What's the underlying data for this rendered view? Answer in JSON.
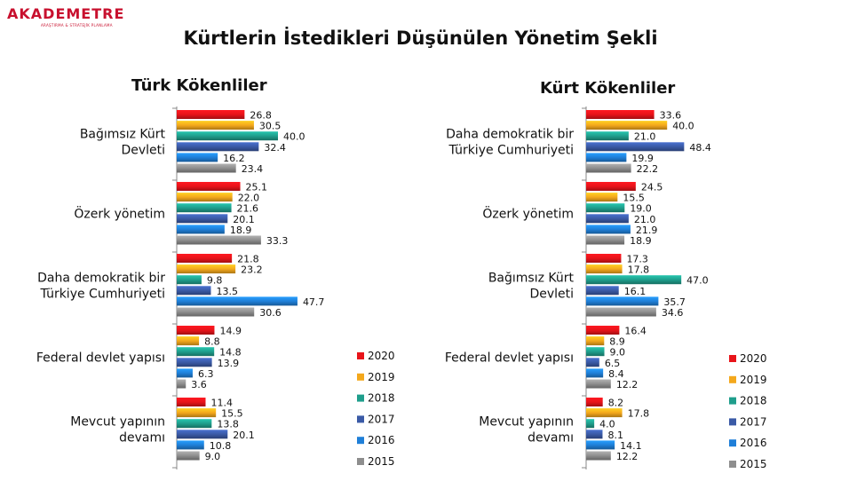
{
  "logo": {
    "name": "AKADEMETRE",
    "tagline": "ARAŞTIRMA & STRATEJİK PLANLAMA"
  },
  "title": "Kürtlerin İstedikleri Düşünülen Yönetim Şekli",
  "legend": [
    {
      "year": "2020",
      "color": "#e8141a"
    },
    {
      "year": "2019",
      "color": "#f4a81c"
    },
    {
      "year": "2018",
      "color": "#1f9e8c"
    },
    {
      "year": "2017",
      "color": "#3a5aa6"
    },
    {
      "year": "2016",
      "color": "#1f7fd8"
    },
    {
      "year": "2015",
      "color": "#8e8e8e"
    }
  ],
  "chart_data": [
    {
      "type": "bar",
      "orientation": "horizontal",
      "title": "Türk Kökenliler",
      "series_names": [
        "2020",
        "2019",
        "2018",
        "2017",
        "2016",
        "2015"
      ],
      "categories": [
        {
          "label": [
            "Bağımsız Kürt",
            "Devleti"
          ],
          "values": [
            26.8,
            30.5,
            40.0,
            32.4,
            16.2,
            23.4
          ]
        },
        {
          "label": [
            "Özerk yönetim"
          ],
          "values": [
            25.1,
            22.0,
            21.6,
            20.1,
            18.9,
            33.3
          ]
        },
        {
          "label": [
            "Daha demokratik bir",
            "Türkiye Cumhuriyeti"
          ],
          "values": [
            21.8,
            23.2,
            9.8,
            13.5,
            47.7,
            30.6
          ]
        },
        {
          "label": [
            "Federal devlet yapısı"
          ],
          "values": [
            14.9,
            8.8,
            14.8,
            13.9,
            6.3,
            3.6
          ]
        },
        {
          "label": [
            "Mevcut yapının",
            "devamı"
          ],
          "values": [
            11.4,
            15.5,
            13.8,
            20.1,
            10.8,
            9.0
          ]
        }
      ]
    },
    {
      "type": "bar",
      "orientation": "horizontal",
      "title": "Kürt Kökenliler",
      "series_names": [
        "2020",
        "2019",
        "2018",
        "2017",
        "2016",
        "2015"
      ],
      "categories": [
        {
          "label": [
            "Daha demokratik bir",
            "Türkiye Cumhuriyeti"
          ],
          "values": [
            33.6,
            40.0,
            21.0,
            48.4,
            19.9,
            22.2
          ]
        },
        {
          "label": [
            "Özerk yönetim"
          ],
          "values": [
            24.5,
            15.5,
            19.0,
            21.0,
            21.9,
            18.9
          ]
        },
        {
          "label": [
            "Bağımsız Kürt",
            "Devleti"
          ],
          "values": [
            17.3,
            17.8,
            47.0,
            16.1,
            35.7,
            34.6
          ]
        },
        {
          "label": [
            "Federal devlet yapısı"
          ],
          "values": [
            16.4,
            8.9,
            9.0,
            6.5,
            8.4,
            12.2
          ]
        },
        {
          "label": [
            "Mevcut yapının",
            "devamı"
          ],
          "values": [
            8.2,
            17.8,
            4.0,
            8.1,
            14.1,
            12.2
          ]
        }
      ]
    }
  ]
}
